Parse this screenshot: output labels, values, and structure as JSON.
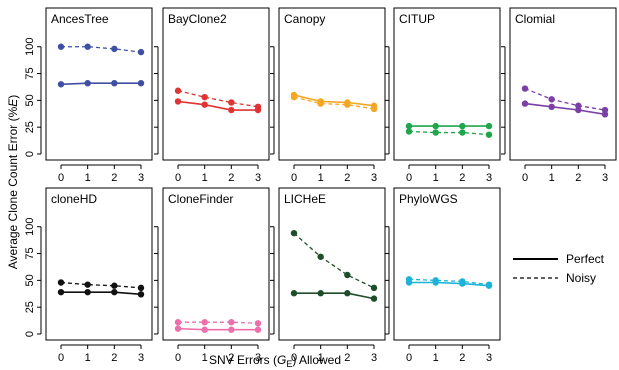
{
  "figure": {
    "ylabel": "Average Clone Count Error (%E)",
    "ylabel_main": "Average Clone Count Error (%",
    "ylabel_var": "E",
    "ylabel_close": ")",
    "xlabel_main": "SNV Errors (",
    "xlabel_var": "G",
    "xlabel_sub": "E",
    "xlabel_close": ") Allowed",
    "legend": [
      {
        "label": "Perfect",
        "style": "solid"
      },
      {
        "label": "Noisy",
        "style": "dashed"
      }
    ]
  },
  "chart_data": [
    {
      "type": "line",
      "title": "AncesTree",
      "color": "#3f4fa3",
      "x": [
        0,
        1,
        2,
        3
      ],
      "xticks": [
        "0",
        "1",
        "2",
        "3"
      ],
      "ylim": [
        0,
        110
      ],
      "yticks": [
        "0",
        "25",
        "50",
        "75",
        "100"
      ],
      "series": [
        {
          "name": "Perfect",
          "values": [
            65,
            66,
            66,
            66
          ]
        },
        {
          "name": "Noisy",
          "values": [
            100,
            100,
            98,
            95
          ]
        }
      ]
    },
    {
      "type": "line",
      "title": "BayClone2",
      "color": "#e03333",
      "x": [
        0,
        1,
        2,
        3
      ],
      "xticks": [
        "0",
        "1",
        "2",
        "3"
      ],
      "ylim": [
        0,
        110
      ],
      "yticks": [],
      "series": [
        {
          "name": "Perfect",
          "values": [
            49,
            46,
            41,
            41
          ]
        },
        {
          "name": "Noisy",
          "values": [
            59,
            53,
            48,
            44
          ]
        }
      ]
    },
    {
      "type": "line",
      "title": "Canopy",
      "color": "#f5a623",
      "x": [
        0,
        1,
        2,
        3
      ],
      "xticks": [
        "0",
        "1",
        "2",
        "3"
      ],
      "ylim": [
        0,
        110
      ],
      "yticks": [],
      "series": [
        {
          "name": "Perfect",
          "values": [
            55,
            49,
            48,
            45
          ]
        },
        {
          "name": "Noisy",
          "values": [
            53,
            47,
            46,
            42
          ]
        }
      ]
    },
    {
      "type": "line",
      "title": "CITUP",
      "color": "#1fa54a",
      "x": [
        0,
        1,
        2,
        3
      ],
      "xticks": [
        "0",
        "1",
        "2",
        "3"
      ],
      "ylim": [
        0,
        110
      ],
      "yticks": [],
      "series": [
        {
          "name": "Perfect",
          "values": [
            26,
            26,
            26,
            26
          ]
        },
        {
          "name": "Noisy",
          "values": [
            21,
            20,
            20,
            18
          ]
        }
      ]
    },
    {
      "type": "line",
      "title": "Clomial",
      "color": "#7b3fa6",
      "x": [
        0,
        1,
        2,
        3
      ],
      "xticks": [
        "0",
        "1",
        "2",
        "3"
      ],
      "ylim": [
        0,
        110
      ],
      "yticks": [],
      "series": [
        {
          "name": "Perfect",
          "values": [
            47,
            44,
            41,
            37
          ]
        },
        {
          "name": "Noisy",
          "values": [
            61,
            51,
            45,
            41
          ]
        }
      ]
    },
    {
      "type": "line",
      "title": "cloneHD",
      "color": "#111111",
      "x": [
        0,
        1,
        2,
        3
      ],
      "xticks": [
        "0",
        "1",
        "2",
        "3"
      ],
      "ylim": [
        0,
        110
      ],
      "yticks": [
        "0",
        "25",
        "50",
        "75",
        "100"
      ],
      "series": [
        {
          "name": "Perfect",
          "values": [
            39,
            39,
            39,
            37
          ]
        },
        {
          "name": "Noisy",
          "values": [
            48,
            46,
            45,
            43
          ]
        }
      ]
    },
    {
      "type": "line",
      "title": "CloneFinder",
      "color": "#ec6fac",
      "x": [
        0,
        1,
        2,
        3
      ],
      "xticks": [
        "0",
        "1",
        "2",
        "3"
      ],
      "ylim": [
        0,
        110
      ],
      "yticks": [],
      "series": [
        {
          "name": "Perfect",
          "values": [
            5,
            4,
            4,
            4
          ]
        },
        {
          "name": "Noisy",
          "values": [
            11,
            11,
            11,
            10
          ]
        }
      ]
    },
    {
      "type": "line",
      "title": "LICHeE",
      "color": "#1d4d2a",
      "x": [
        0,
        1,
        2,
        3
      ],
      "xticks": [
        "0",
        "1",
        "2",
        "3"
      ],
      "ylim": [
        0,
        110
      ],
      "yticks": [],
      "series": [
        {
          "name": "Perfect",
          "values": [
            38,
            38,
            38,
            33
          ]
        },
        {
          "name": "Noisy",
          "values": [
            94,
            72,
            55,
            43
          ]
        }
      ]
    },
    {
      "type": "line",
      "title": "PhyloWGS",
      "color": "#1db3d8",
      "x": [
        0,
        1,
        2,
        3
      ],
      "xticks": [
        "0",
        "1",
        "2",
        "3"
      ],
      "ylim": [
        0,
        110
      ],
      "yticks": [],
      "series": [
        {
          "name": "Perfect",
          "values": [
            48,
            48,
            47,
            45
          ]
        },
        {
          "name": "Noisy",
          "values": [
            51,
            50,
            49,
            46
          ]
        }
      ]
    }
  ]
}
